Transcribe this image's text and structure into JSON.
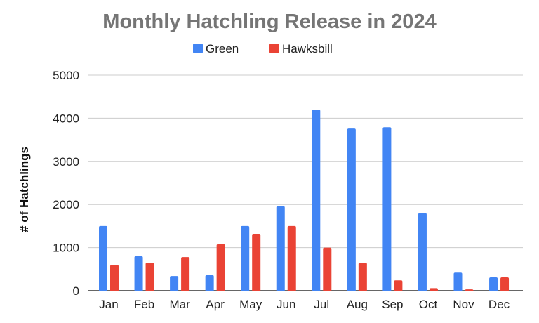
{
  "chart_data": {
    "type": "bar",
    "title": "Monthly Hatchling Release in 2024",
    "xlabel": "",
    "ylabel": "# of Hatchlings",
    "ylim": [
      0,
      5000
    ],
    "yticks": [
      "0",
      "1000",
      "2000",
      "3000",
      "4000",
      "5000"
    ],
    "grid": true,
    "legend_position": "top",
    "categories": [
      "Jan",
      "Feb",
      "Mar",
      "Apr",
      "May",
      "Jun",
      "Jul",
      "Aug",
      "Sep",
      "Oct",
      "Nov",
      "Dec"
    ],
    "series": [
      {
        "name": "Green",
        "color": "#4285f4",
        "values": [
          1500,
          800,
          340,
          360,
          1500,
          1960,
          4200,
          3760,
          3790,
          1800,
          420,
          310
        ]
      },
      {
        "name": "Hawksbill",
        "color": "#ea4335",
        "values": [
          600,
          650,
          780,
          1080,
          1320,
          1500,
          1000,
          650,
          240,
          60,
          30,
          310
        ]
      }
    ]
  }
}
